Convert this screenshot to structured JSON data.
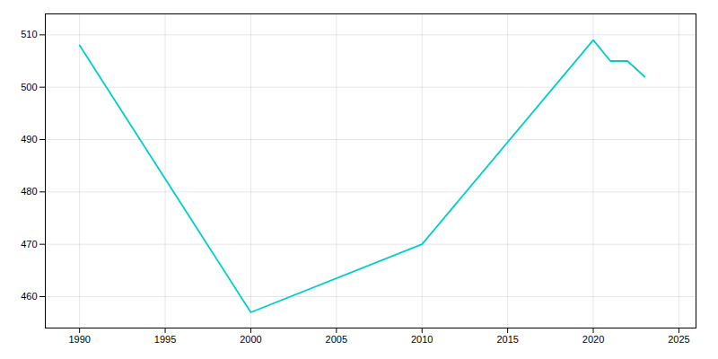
{
  "chart_data": {
    "type": "line",
    "x": [
      1990,
      2000,
      2010,
      2020,
      2021,
      2022,
      2023
    ],
    "values": [
      508,
      457,
      470,
      509,
      505,
      505,
      502
    ],
    "color": "#00CDCD",
    "xlim": [
      1988,
      2026
    ],
    "ylim": [
      454,
      514
    ],
    "xticks": [
      1990,
      1995,
      2000,
      2005,
      2010,
      2015,
      2020,
      2025
    ],
    "yticks": [
      460,
      470,
      480,
      490,
      500,
      510
    ],
    "grid": true
  }
}
